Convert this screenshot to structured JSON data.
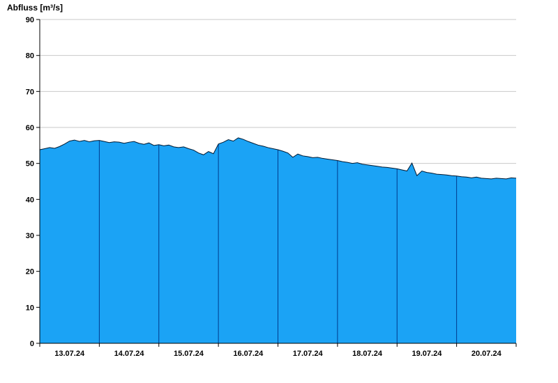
{
  "title": "Abfluss [m³/s]",
  "chart_data": {
    "type": "area",
    "title": "Abfluss [m³/s]",
    "ylabel": "Abfluss [m³/s]",
    "xlabel": "",
    "ylim": [
      0,
      90
    ],
    "ytick_step": 10,
    "y_tick_labels": [
      "0",
      "10",
      "20",
      "30",
      "40",
      "50",
      "60",
      "70",
      "80",
      "90"
    ],
    "x_tick_labels": [
      "13.07.24",
      "14.07.24",
      "15.07.24",
      "16.07.24",
      "17.07.24",
      "18.07.24",
      "19.07.24",
      "20.07.24"
    ],
    "x_days": 8,
    "sample_interval_hours": 2,
    "grid": "horizontal",
    "legend_position": "none",
    "values": [
      53.8,
      54.1,
      54.4,
      54.2,
      54.7,
      55.4,
      56.2,
      56.5,
      56.1,
      56.4,
      56.0,
      56.3,
      56.4,
      56.1,
      55.8,
      56.0,
      55.9,
      55.6,
      55.9,
      56.1,
      55.6,
      55.3,
      55.7,
      55.0,
      55.2,
      54.9,
      55.1,
      54.6,
      54.4,
      54.6,
      54.1,
      53.7,
      52.9,
      52.4,
      53.3,
      52.7,
      55.4,
      55.9,
      56.6,
      56.2,
      57.1,
      56.7,
      56.1,
      55.6,
      55.1,
      54.8,
      54.4,
      54.1,
      53.8,
      53.4,
      52.9,
      51.7,
      52.6,
      52.1,
      51.9,
      51.6,
      51.7,
      51.4,
      51.2,
      51.0,
      50.8,
      50.5,
      50.3,
      50.0,
      50.2,
      49.8,
      49.6,
      49.4,
      49.2,
      49.0,
      48.9,
      48.7,
      48.5,
      48.2,
      47.9,
      50.1,
      46.6,
      47.9,
      47.5,
      47.3,
      47.0,
      46.9,
      46.8,
      46.6,
      46.5,
      46.3,
      46.2,
      46.0,
      46.2,
      45.9,
      45.8,
      45.7,
      45.9,
      45.8,
      45.7,
      46.0,
      45.9
    ],
    "colors": {
      "area_fill": "#1BA3F5",
      "area_line": "#001a33",
      "day_line": "#003a8c",
      "grid": "#c9c9c9",
      "axis": "#000000",
      "background": "#ffffff"
    }
  }
}
